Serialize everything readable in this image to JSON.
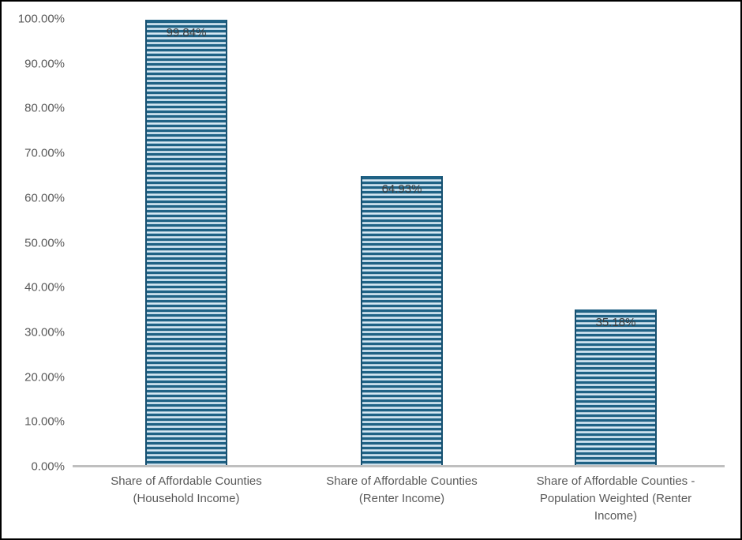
{
  "chart_data": {
    "type": "bar",
    "title": "",
    "xlabel": "",
    "ylabel": "",
    "ylim": [
      0,
      100
    ],
    "grid": false,
    "legend": false,
    "categories": [
      "Share of Affordable Counties (Household Income)",
      "Share of Affordable Counties (Renter Income)",
      "Share of Affordable Counties - Population Weighted (Renter Income)"
    ],
    "category_lines": [
      [
        "Share of Affordable Counties",
        "(Household Income)"
      ],
      [
        "Share of Affordable Counties",
        "(Renter Income)"
      ],
      [
        "Share of Affordable Counties -",
        "Population Weighted (Renter",
        "Income)"
      ]
    ],
    "values": [
      99.84,
      64.93,
      35.18
    ],
    "data_labels": [
      "99.84%",
      "64.93%",
      "35.18%"
    ],
    "y_ticks": [
      "0.00%",
      "10.00%",
      "20.00%",
      "30.00%",
      "40.00%",
      "50.00%",
      "60.00%",
      "70.00%",
      "80.00%",
      "90.00%",
      "100.00%"
    ],
    "colors": {
      "stripe_dark": "#1F6285",
      "stripe_mid": "#A6C9DE",
      "stripe_light": "#D9EAF4",
      "stripe_highlight": "#EAF3F9",
      "bar_edge": "#175070",
      "axis_line": "#BFBFBF",
      "tick_label": "#595959",
      "data_label": "#3D3D3D",
      "background": "#FFFFFF",
      "page_border": "#000000"
    }
  }
}
